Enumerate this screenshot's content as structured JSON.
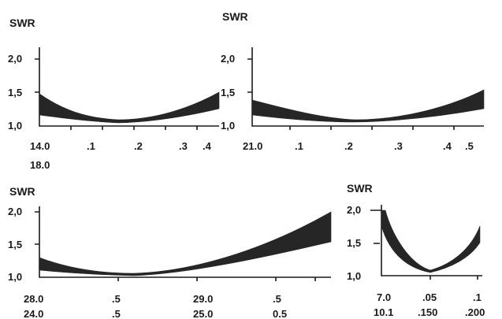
{
  "chart_data": [
    {
      "type": "area",
      "title": "SWR",
      "ylabel": "SWR",
      "y_tick_labels": [
        "2,0",
        "1,5",
        "1,0"
      ],
      "x_tick_labels_row1": [
        "14.0",
        ".1",
        ".2",
        ".3",
        ".4"
      ],
      "x_tick_labels_row2": [
        "18.0"
      ],
      "ylim": [
        1.0,
        2.0
      ],
      "x": [
        0,
        0.1,
        0.2,
        0.3,
        0.4,
        0.5
      ],
      "series": [
        {
          "values": [
            1.48,
            1.22,
            1.1,
            1.12,
            1.22,
            1.48
          ]
        },
        {
          "values": [
            1.17,
            1.07,
            1.03,
            1.05,
            1.1,
            1.26
          ]
        }
      ]
    },
    {
      "type": "area",
      "title": "SWR",
      "ylabel": "SWR",
      "y_tick_labels": [
        "2,0",
        "1,5",
        "1,0"
      ],
      "x_tick_labels_row1": [
        "21.0",
        ".1",
        ".2",
        ".3",
        ".4",
        ".5"
      ],
      "x_tick_labels_row2": [],
      "ylim": [
        1.0,
        2.0
      ],
      "x": [
        0,
        0.1,
        0.2,
        0.3,
        0.4,
        0.5,
        0.6
      ],
      "series": [
        {
          "values": [
            1.36,
            1.16,
            1.08,
            1.12,
            1.25,
            1.4,
            1.55
          ]
        },
        {
          "values": [
            1.17,
            1.05,
            1.03,
            1.05,
            1.1,
            1.18,
            1.26
          ]
        }
      ]
    },
    {
      "type": "area",
      "title": "SWR",
      "ylabel": "SWR",
      "y_tick_labels": [
        "2,0",
        "1,5",
        "1,0"
      ],
      "x_tick_labels_row1": [
        "28.0",
        ".5",
        "29.0",
        ".5"
      ],
      "x_tick_labels_row2": [
        "24.0",
        ".5",
        "25.0",
        "0.5"
      ],
      "ylim": [
        1.0,
        2.0
      ],
      "x": [
        0,
        0.5,
        1.0,
        1.5,
        2.0
      ],
      "series": [
        {
          "values": [
            1.3,
            1.07,
            1.2,
            1.55,
            2.0
          ]
        },
        {
          "values": [
            1.15,
            1.03,
            1.07,
            1.28,
            1.55
          ]
        }
      ]
    },
    {
      "type": "area",
      "title": "SWR",
      "ylabel": "SWR",
      "y_tick_labels": [
        "2,0",
        "1,5",
        "1,0"
      ],
      "x_tick_labels_row1": [
        "7.0",
        ".05",
        ".1"
      ],
      "x_tick_labels_row2": [
        "10.1",
        ".150",
        ".200"
      ],
      "ylim": [
        1.0,
        2.0
      ],
      "x": [
        0,
        0.05,
        0.1
      ],
      "series": [
        {
          "values": [
            2.0,
            1.03,
            1.75
          ]
        },
        {
          "values": [
            1.8,
            1.03,
            1.45
          ]
        }
      ]
    }
  ]
}
